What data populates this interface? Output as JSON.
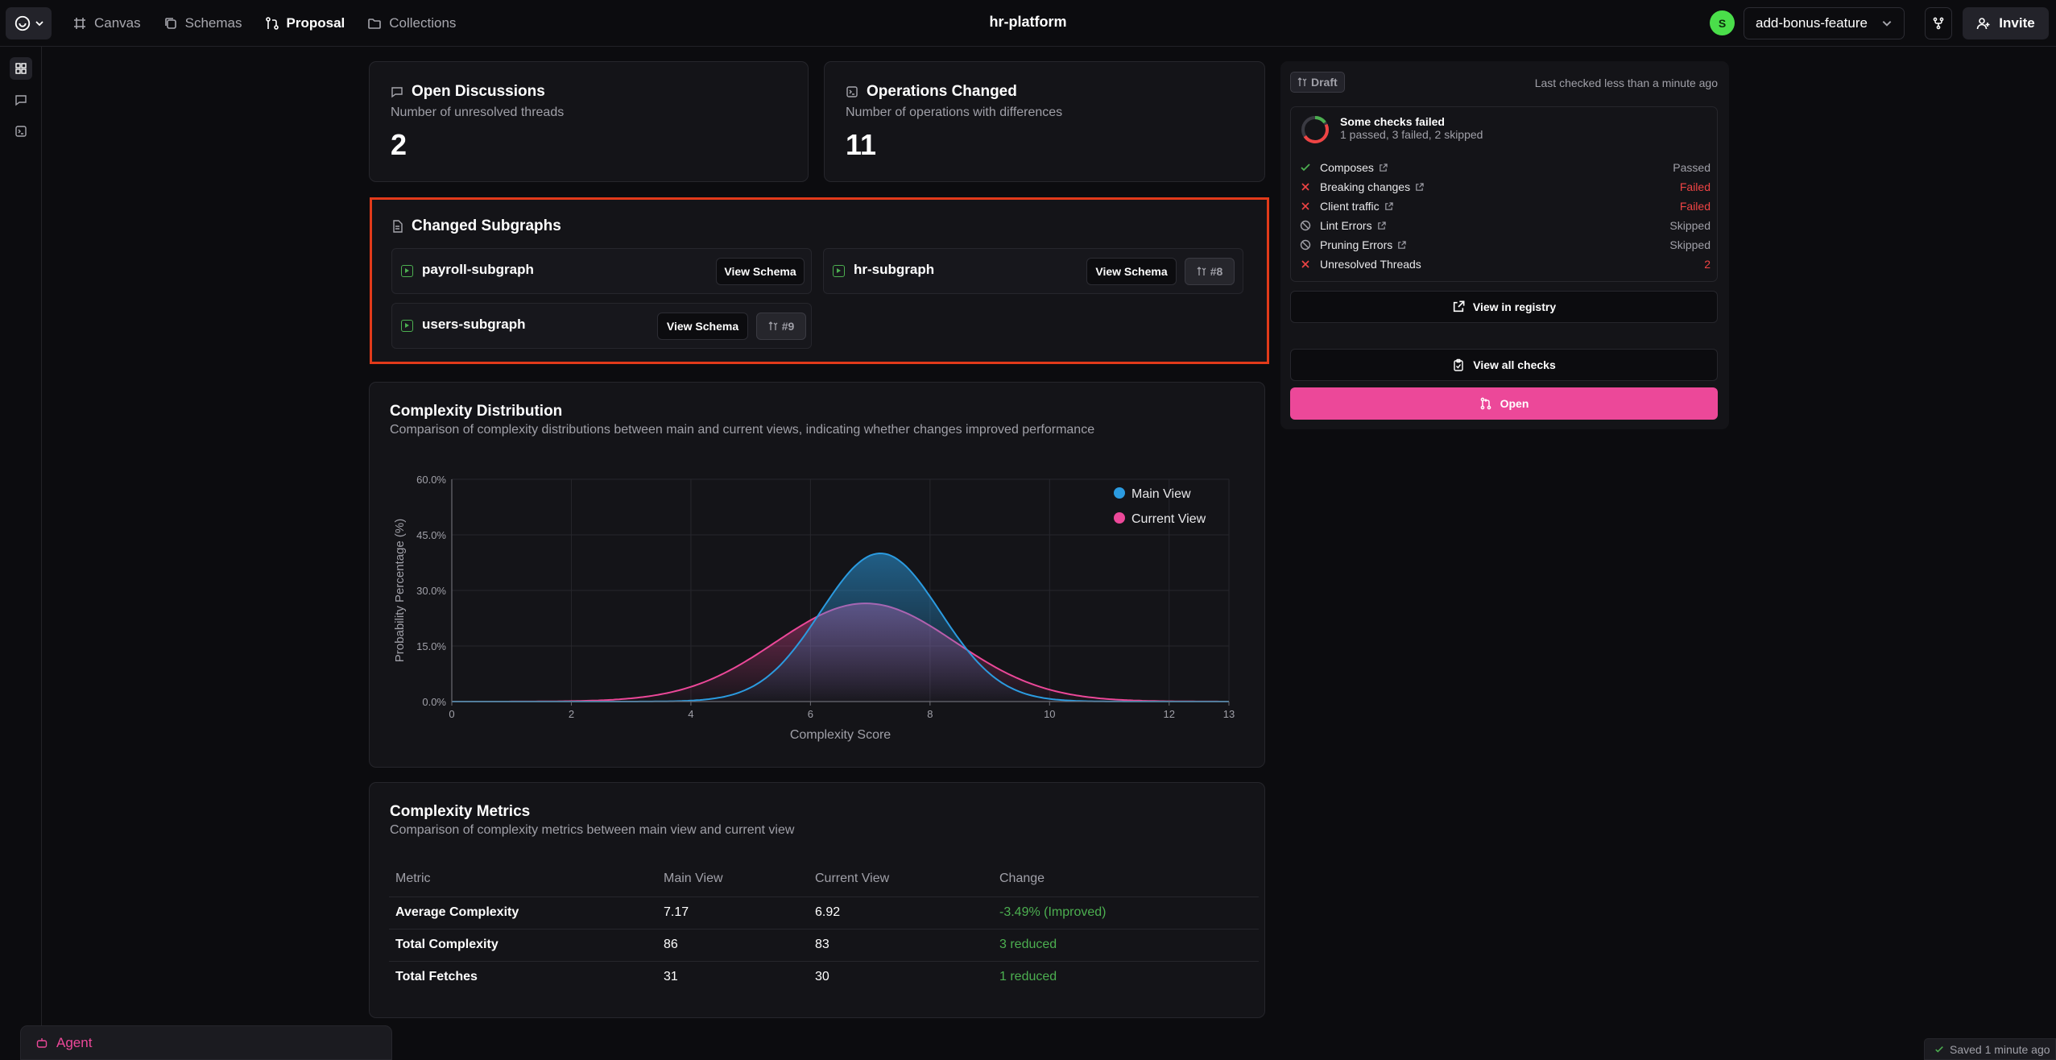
{
  "app_title": "hr-platform",
  "nav": {
    "items": [
      {
        "label": "Canvas",
        "icon": "canvas-icon"
      },
      {
        "label": "Schemas",
        "icon": "schemas-icon"
      },
      {
        "label": "Proposal",
        "icon": "proposal-icon"
      },
      {
        "label": "Collections",
        "icon": "folder-icon"
      }
    ],
    "active": "Proposal"
  },
  "user": {
    "avatar_initial": "S",
    "avatar_color": "#4ade4a"
  },
  "branch": {
    "selected": "add-bonus-feature"
  },
  "invite_label": "Invite",
  "open_discussions": {
    "title": "Open Discussions",
    "subtitle": "Number of unresolved threads",
    "value": "2"
  },
  "operations_changed": {
    "title": "Operations Changed",
    "subtitle": "Number of operations with differences",
    "value": "11"
  },
  "changed_subgraphs": {
    "title": "Changed Subgraphs",
    "view_schema_label": "View Schema",
    "items": [
      {
        "name": "payroll-subgraph",
        "pr": ""
      },
      {
        "name": "hr-subgraph",
        "pr": "#8"
      },
      {
        "name": "users-subgraph",
        "pr": "#9"
      }
    ]
  },
  "complexity_distribution": {
    "title": "Complexity Distribution",
    "subtitle": "Comparison of complexity distributions between main and current views, indicating whether changes improved performance"
  },
  "chart_data": {
    "type": "area",
    "xlabel": "Complexity Score",
    "ylabel": "Probability Percentage (%)",
    "xlim": [
      0,
      13
    ],
    "ylim": [
      0,
      60
    ],
    "x_ticks": [
      "0",
      "2",
      "4",
      "6",
      "8",
      "10",
      "12",
      "13"
    ],
    "y_ticks": [
      "0.0%",
      "15.0%",
      "30.0%",
      "45.0%",
      "60.0%"
    ],
    "grid": true,
    "legend_position": "top-right",
    "series": [
      {
        "name": "Main View",
        "color": "#2b9be0",
        "distribution": "normal",
        "mean": 7.17,
        "std": 1.0,
        "peak": 40.0
      },
      {
        "name": "Current View",
        "color": "#ec4899",
        "distribution": "normal",
        "mean": 6.92,
        "std": 1.5,
        "peak": 26.5
      }
    ]
  },
  "complexity_metrics": {
    "title": "Complexity Metrics",
    "subtitle": "Comparison of complexity metrics between main view and current view",
    "columns": [
      "Metric",
      "Main View",
      "Current View",
      "Change"
    ],
    "rows": [
      [
        "Average Complexity",
        "7.17",
        "6.92",
        "-3.49% (Improved)"
      ],
      [
        "Total Complexity",
        "86",
        "83",
        "3 reduced"
      ],
      [
        "Total Fetches",
        "31",
        "30",
        "1 reduced"
      ]
    ]
  },
  "checks_panel": {
    "status_badge": "Draft",
    "last_checked": "Last checked less than a minute ago",
    "summary_title": "Some checks failed",
    "summary_sub": "1 passed, 3 failed, 2 skipped",
    "checks": [
      {
        "name": "Composes",
        "status": "Passed",
        "state": "pass",
        "link": true
      },
      {
        "name": "Breaking changes",
        "status": "Failed",
        "state": "fail",
        "link": true
      },
      {
        "name": "Client traffic",
        "status": "Failed",
        "state": "fail",
        "link": true
      },
      {
        "name": "Lint Errors",
        "status": "Skipped",
        "state": "skip",
        "link": true
      },
      {
        "name": "Pruning Errors",
        "status": "Skipped",
        "state": "skip",
        "link": true
      },
      {
        "name": "Unresolved Threads",
        "status": "2",
        "state": "fail",
        "link": false
      }
    ],
    "view_registry": "View in registry",
    "view_all_checks": "View all checks",
    "open_label": "Open"
  },
  "agent_label": "Agent",
  "saved_status": "Saved 1 minute ago"
}
